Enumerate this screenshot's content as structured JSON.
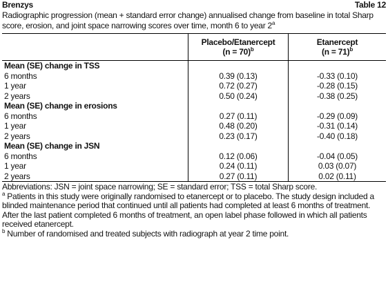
{
  "header": {
    "brand": "Brenzys",
    "table_label": "Table 12"
  },
  "caption": {
    "text": "Radiographic progression (mean + standard error change) annualised change from baseline in total Sharp score, erosion, and joint space narrowing scores over time, month 6 to year 2",
    "note_mark": "a"
  },
  "table": {
    "columns": [
      {
        "name": "Placebo/Etanercept",
        "n": "(n = 70)",
        "note_mark": "b"
      },
      {
        "name": "Etanercept",
        "n": "(n = 71)",
        "note_mark": "b"
      }
    ],
    "sections": [
      {
        "heading": "Mean (SE) change in TSS",
        "rows": [
          [
            "6 months",
            "0.39 (0.13)",
            "-0.33 (0.10)"
          ],
          [
            "1 year",
            "0.72 (0.27)",
            "-0.28 (0.15)"
          ],
          [
            "2 years",
            "0.50 (0.24)",
            "-0.38 (0.25)"
          ]
        ]
      },
      {
        "heading": "Mean (SE) change in erosions",
        "rows": [
          [
            "6 months",
            "0.27 (0.11)",
            "-0.29 (0.09)"
          ],
          [
            "1 year",
            "0.48 (0.20)",
            "-0.31 (0.14)"
          ],
          [
            "2 years",
            "0.23 (0.17)",
            "-0.40 (0.18)"
          ]
        ]
      },
      {
        "heading": "Mean (SE) change in JSN",
        "rows": [
          [
            "6 months",
            "0.12 (0.06)",
            "-0.04 (0.05)"
          ],
          [
            "1 year",
            "0.24 (0.11)",
            "0.03 (0.07)"
          ],
          [
            "2 years",
            "0.27 (0.11)",
            "0.02 (0.11)"
          ]
        ]
      }
    ]
  },
  "footnotes": [
    {
      "mark": "",
      "text": "Abbreviations: JSN = joint space narrowing; SE = standard error; TSS = total Sharp score."
    },
    {
      "mark": "a",
      "text": "Patients in this study were originally randomised to etanercept  or to placebo. The study design included a blinded maintenance period that continued until all patients had completed at least 6 months of treatment. After the last patient completed 6 months of treatment, an open label phase followed in which all patients received etanercept."
    },
    {
      "mark": "b",
      "text": "Number of randomised and treated subjects with radiograph at year 2 time point."
    }
  ]
}
